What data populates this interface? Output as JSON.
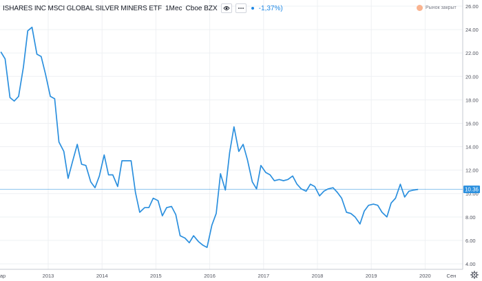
{
  "header": {
    "symbol": "ISHARES INC MSCI GLOBAL SILVER MINERS ETF",
    "interval": "1Мес",
    "exchange": "Cboe BZX",
    "change": "-1,37%)",
    "colors": {
      "line": "#2a8fde",
      "accent": "#1e88e5"
    }
  },
  "market_status": {
    "label": "Рынок закрыт",
    "color": "#f9b38f"
  },
  "icons": {
    "eye": "eye-icon",
    "more": "more-icon",
    "settings": "gear-icon"
  },
  "chart_data": {
    "type": "line",
    "x_axis_labels": [
      "ар",
      "2013",
      "2014",
      "2015",
      "2016",
      "2017",
      "2018",
      "2019",
      "2020",
      "Сен"
    ],
    "y_ticks": [
      "26.00",
      "24.00",
      "22.00",
      "20.00",
      "18.00",
      "16.00",
      "14.00",
      "12.00",
      "10.00",
      "8.00",
      "6.00",
      "4.00"
    ],
    "ylim": [
      4,
      26
    ],
    "xlim": [
      2012.08,
      2021.0
    ],
    "last_value": "10.36",
    "last_value_num": 10.36,
    "series": [
      {
        "x": [
          2012.12,
          2012.2,
          2012.29,
          2012.37,
          2012.45,
          2012.54,
          2012.62,
          2012.7,
          2012.79,
          2012.87,
          2012.95,
          2013.04,
          2013.12,
          2013.2,
          2013.29,
          2013.37,
          2013.45,
          2013.54,
          2013.62,
          2013.7,
          2013.79,
          2013.87,
          2013.95,
          2014.04,
          2014.12,
          2014.2,
          2014.29,
          2014.37,
          2014.45,
          2014.54,
          2014.62,
          2014.7,
          2014.79,
          2014.87,
          2014.95,
          2015.04,
          2015.12,
          2015.2,
          2015.29,
          2015.37,
          2015.45,
          2015.54,
          2015.62,
          2015.7,
          2015.79,
          2015.87,
          2015.95,
          2016.04,
          2016.12,
          2016.2,
          2016.29,
          2016.37,
          2016.45,
          2016.54,
          2016.62,
          2016.7,
          2016.79,
          2016.87,
          2016.95,
          2017.04,
          2017.12,
          2017.2,
          2017.29,
          2017.37,
          2017.45,
          2017.54,
          2017.62,
          2017.7,
          2017.79,
          2017.87,
          2017.95,
          2018.04,
          2018.12,
          2018.2,
          2018.29,
          2018.37,
          2018.45,
          2018.54,
          2018.62,
          2018.7,
          2018.79,
          2018.87,
          2018.95,
          2019.04,
          2019.12,
          2019.2,
          2019.29,
          2019.37,
          2019.45,
          2019.54,
          2019.62,
          2019.7,
          2019.79,
          2019.87
        ],
        "y": [
          22.1,
          21.5,
          18.2,
          17.9,
          18.3,
          20.8,
          23.9,
          24.2,
          21.9,
          21.7,
          20.2,
          18.3,
          18.1,
          14.4,
          13.6,
          11.3,
          12.7,
          14.2,
          12.5,
          12.4,
          11.0,
          10.5,
          11.5,
          13.3,
          11.6,
          11.6,
          10.6,
          12.8,
          12.8,
          12.8,
          10.1,
          8.4,
          8.8,
          8.8,
          9.6,
          9.4,
          8.1,
          8.8,
          8.9,
          8.2,
          6.4,
          6.2,
          5.8,
          6.4,
          5.9,
          5.6,
          5.4,
          7.3,
          8.3,
          11.7,
          10.3,
          13.5,
          15.7,
          13.6,
          14.2,
          12.9,
          11.0,
          10.4,
          12.4,
          11.8,
          11.6,
          11.1,
          11.2,
          11.1,
          11.2,
          11.5,
          10.8,
          10.4,
          10.2,
          10.8,
          10.6,
          9.8,
          10.2,
          10.4,
          10.5,
          10.1,
          9.6,
          8.4,
          8.3,
          8.0,
          7.4,
          8.5,
          9.0,
          9.1,
          9.0,
          8.4,
          8.0,
          9.2,
          9.6,
          10.8,
          9.7,
          10.2,
          10.3,
          10.36
        ]
      }
    ]
  }
}
